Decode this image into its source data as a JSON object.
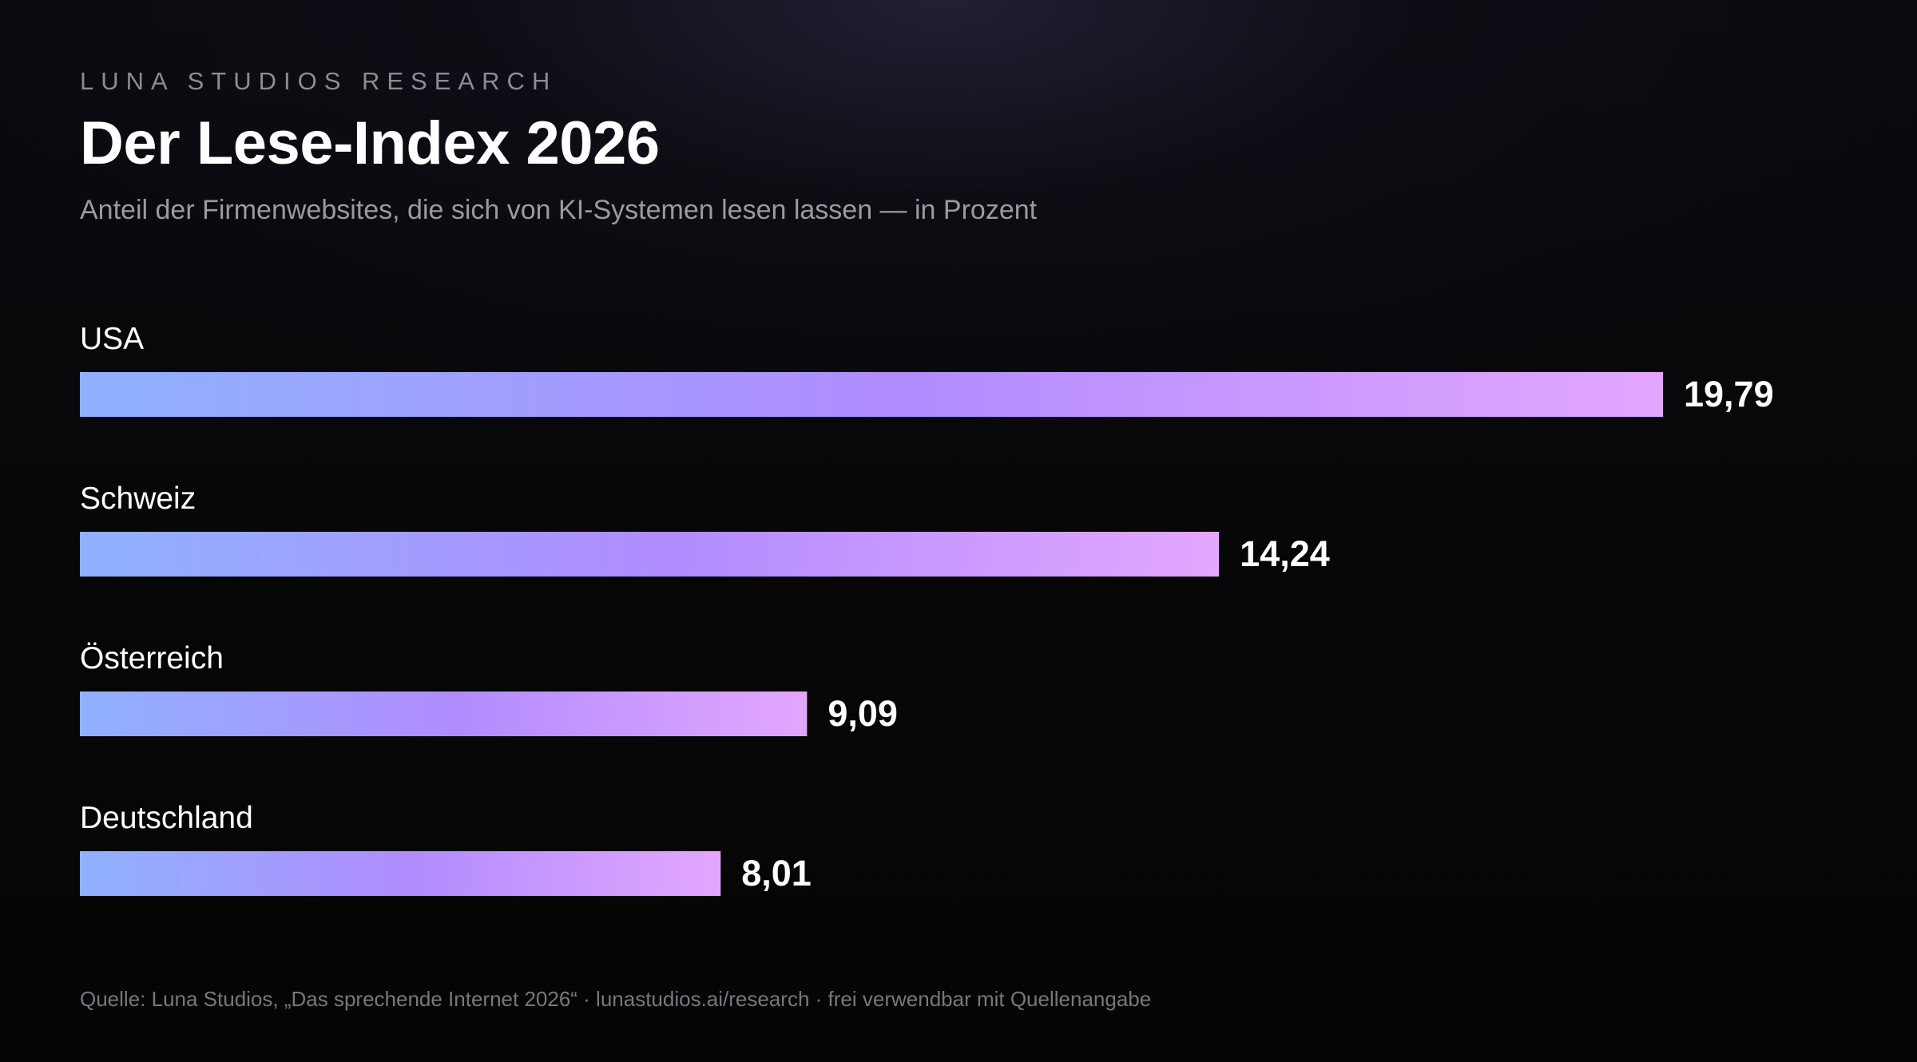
{
  "header": {
    "eyebrow": "LUNA STUDIOS RESEARCH",
    "title": "Der Lese-Index 2026",
    "subtitle": "Anteil der Firmenwebsites, die sich von KI-Systemen lesen lassen — in Prozent"
  },
  "footer": {
    "source": "Quelle: Luna Studios, „Das sprechende Internet 2026“ · lunastudios.ai/research · frei verwendbar mit Quellenangabe"
  },
  "colors": {
    "background": "#060606",
    "bar_start": "#8fb1ff",
    "bar_mid": "#b18cff",
    "bar_end": "#e3a6ff",
    "text": "#ffffff",
    "muted": "#9a9aa2"
  },
  "chart_data": {
    "type": "bar",
    "orientation": "horizontal",
    "title": "Der Lese-Index 2026",
    "subtitle": "Anteil der Firmenwebsites, die sich von KI-Systemen lesen lassen — in Prozent",
    "categories": [
      "USA",
      "Schweiz",
      "Österreich",
      "Deutschland"
    ],
    "values": [
      19.79,
      14.24,
      9.09,
      8.01
    ],
    "value_labels": [
      "19,79",
      "14,24",
      "9,09",
      "8,01"
    ],
    "unit": "Prozent",
    "grid": false,
    "legend": "none"
  }
}
